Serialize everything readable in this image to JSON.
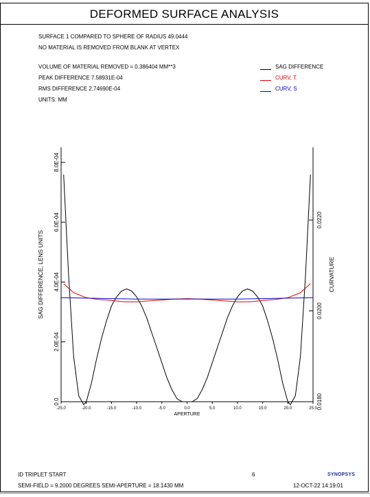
{
  "header": {
    "title": "DEFORMED SURFACE ANALYSIS"
  },
  "info": {
    "line1": "SURFACE   1 COMPARED TO SPHERE OF RADIUS   49.0444",
    "line2": "NO MATERIAL IS REMOVED FROM BLANK AT VERTEX",
    "volume": "VOLUME OF MATERIAL REMOVED =   0.386404 MM**3",
    "peak": "PEAK DIFFERENCE  7.58931E-04",
    "rms": "RMS DIFFERENCE   2.74690E-04",
    "units": "UNITS: MM"
  },
  "legend": [
    {
      "label": "SAG DIFFERENCE",
      "color": "#000000"
    },
    {
      "label": "CURV, T",
      "color": "#dd0000"
    },
    {
      "label": "CURV, S",
      "color": "#0000cc"
    }
  ],
  "footer": {
    "lens_name": "ID TRIPLET START",
    "page_number": "6",
    "logo": "SYNOPSYS",
    "field_line": "SEMI-FIELD =    9.2000 DEGREES   SEMI-APERTURE = 18.1430 MM",
    "datetime": "12-OCT-22  14:19:01"
  },
  "chart_data": {
    "type": "line",
    "xlabel": "APERTURE",
    "ylabel": "SAG DIFFERENCE, LENS UNITS",
    "y2label": "CURVATURE",
    "xlim": [
      -25.0,
      25.0
    ],
    "ylim": [
      0.0,
      0.00085
    ],
    "y2lim": [
      0.018,
      0.0236
    ],
    "xticks": [
      "-25.0",
      "-20.0",
      "-15.0",
      "-10.0",
      "-5.0",
      "0.0",
      "5.0",
      "10.0",
      "15.0",
      "20.0",
      "25.0"
    ],
    "yticks": [
      "0.0",
      "2.0E-04",
      "4.0E-04",
      "6.0E-04",
      "8.0E-04"
    ],
    "y2ticks": [
      "0.0180",
      "0.0200",
      "0.0220"
    ],
    "series": [
      {
        "name": "SAG DIFFERENCE",
        "color": "#000000",
        "axis": "left",
        "x": [
          -24.5,
          -23.5,
          -22.5,
          -21.5,
          -20.5,
          -20.0,
          -19.0,
          -18.0,
          -17.0,
          -16.0,
          -15.0,
          -14.0,
          -13.0,
          -12.0,
          -11.0,
          -10.0,
          -9.0,
          -8.0,
          -7.0,
          -6.0,
          -5.0,
          -4.0,
          -3.0,
          -2.0,
          -1.0,
          0.0,
          1.0,
          2.0,
          3.0,
          4.0,
          5.0,
          6.0,
          7.0,
          8.0,
          9.0,
          10.0,
          11.0,
          12.0,
          13.0,
          14.0,
          15.0,
          16.0,
          17.0,
          18.0,
          19.0,
          20.0,
          20.5,
          21.5,
          22.5,
          23.5,
          24.5
        ],
        "y": [
          0.000759,
          0.00042,
          0.00015,
          2e-05,
          -1e-05,
          0.0,
          6e-05,
          0.00014,
          0.00021,
          0.00027,
          0.00032,
          0.00035,
          0.00037,
          0.000377,
          0.00037,
          0.00035,
          0.00032,
          0.00028,
          0.00023,
          0.00018,
          0.00013,
          8e-05,
          4e-05,
          1e-05,
          0.0,
          0.0,
          0.0,
          1e-05,
          4e-05,
          8e-05,
          0.00013,
          0.00018,
          0.00023,
          0.00028,
          0.00032,
          0.00035,
          0.00037,
          0.000377,
          0.00037,
          0.00035,
          0.00032,
          0.00027,
          0.00021,
          0.00014,
          6e-05,
          0.0,
          -1e-05,
          2e-05,
          0.00015,
          0.00042,
          0.000759
        ]
      },
      {
        "name": "CURV, T",
        "color": "#dd0000",
        "axis": "right",
        "x": [
          -24.5,
          -22.5,
          -20.0,
          -17.5,
          -15.0,
          -12.5,
          -10.0,
          -7.5,
          -5.0,
          -2.5,
          0.0,
          2.5,
          5.0,
          7.5,
          10.0,
          12.5,
          15.0,
          17.5,
          20.0,
          22.5,
          24.5
        ],
        "y": [
          0.0206,
          0.0204,
          0.02029,
          0.02025,
          0.02023,
          0.0202,
          0.0202,
          0.02022,
          0.02024,
          0.02026,
          0.02027,
          0.02026,
          0.02024,
          0.02022,
          0.0202,
          0.0202,
          0.02023,
          0.02025,
          0.02029,
          0.0204,
          0.0206
        ]
      },
      {
        "name": "CURV, S",
        "color": "#0000cc",
        "axis": "right",
        "x": [
          -25.0,
          -20.0,
          -15.0,
          -10.0,
          -5.0,
          0.0,
          5.0,
          10.0,
          15.0,
          20.0,
          25.0
        ],
        "y": [
          0.02029,
          0.02028,
          0.02027,
          0.02026,
          0.02026,
          0.02026,
          0.02026,
          0.02026,
          0.02027,
          0.02028,
          0.02029
        ]
      }
    ]
  }
}
